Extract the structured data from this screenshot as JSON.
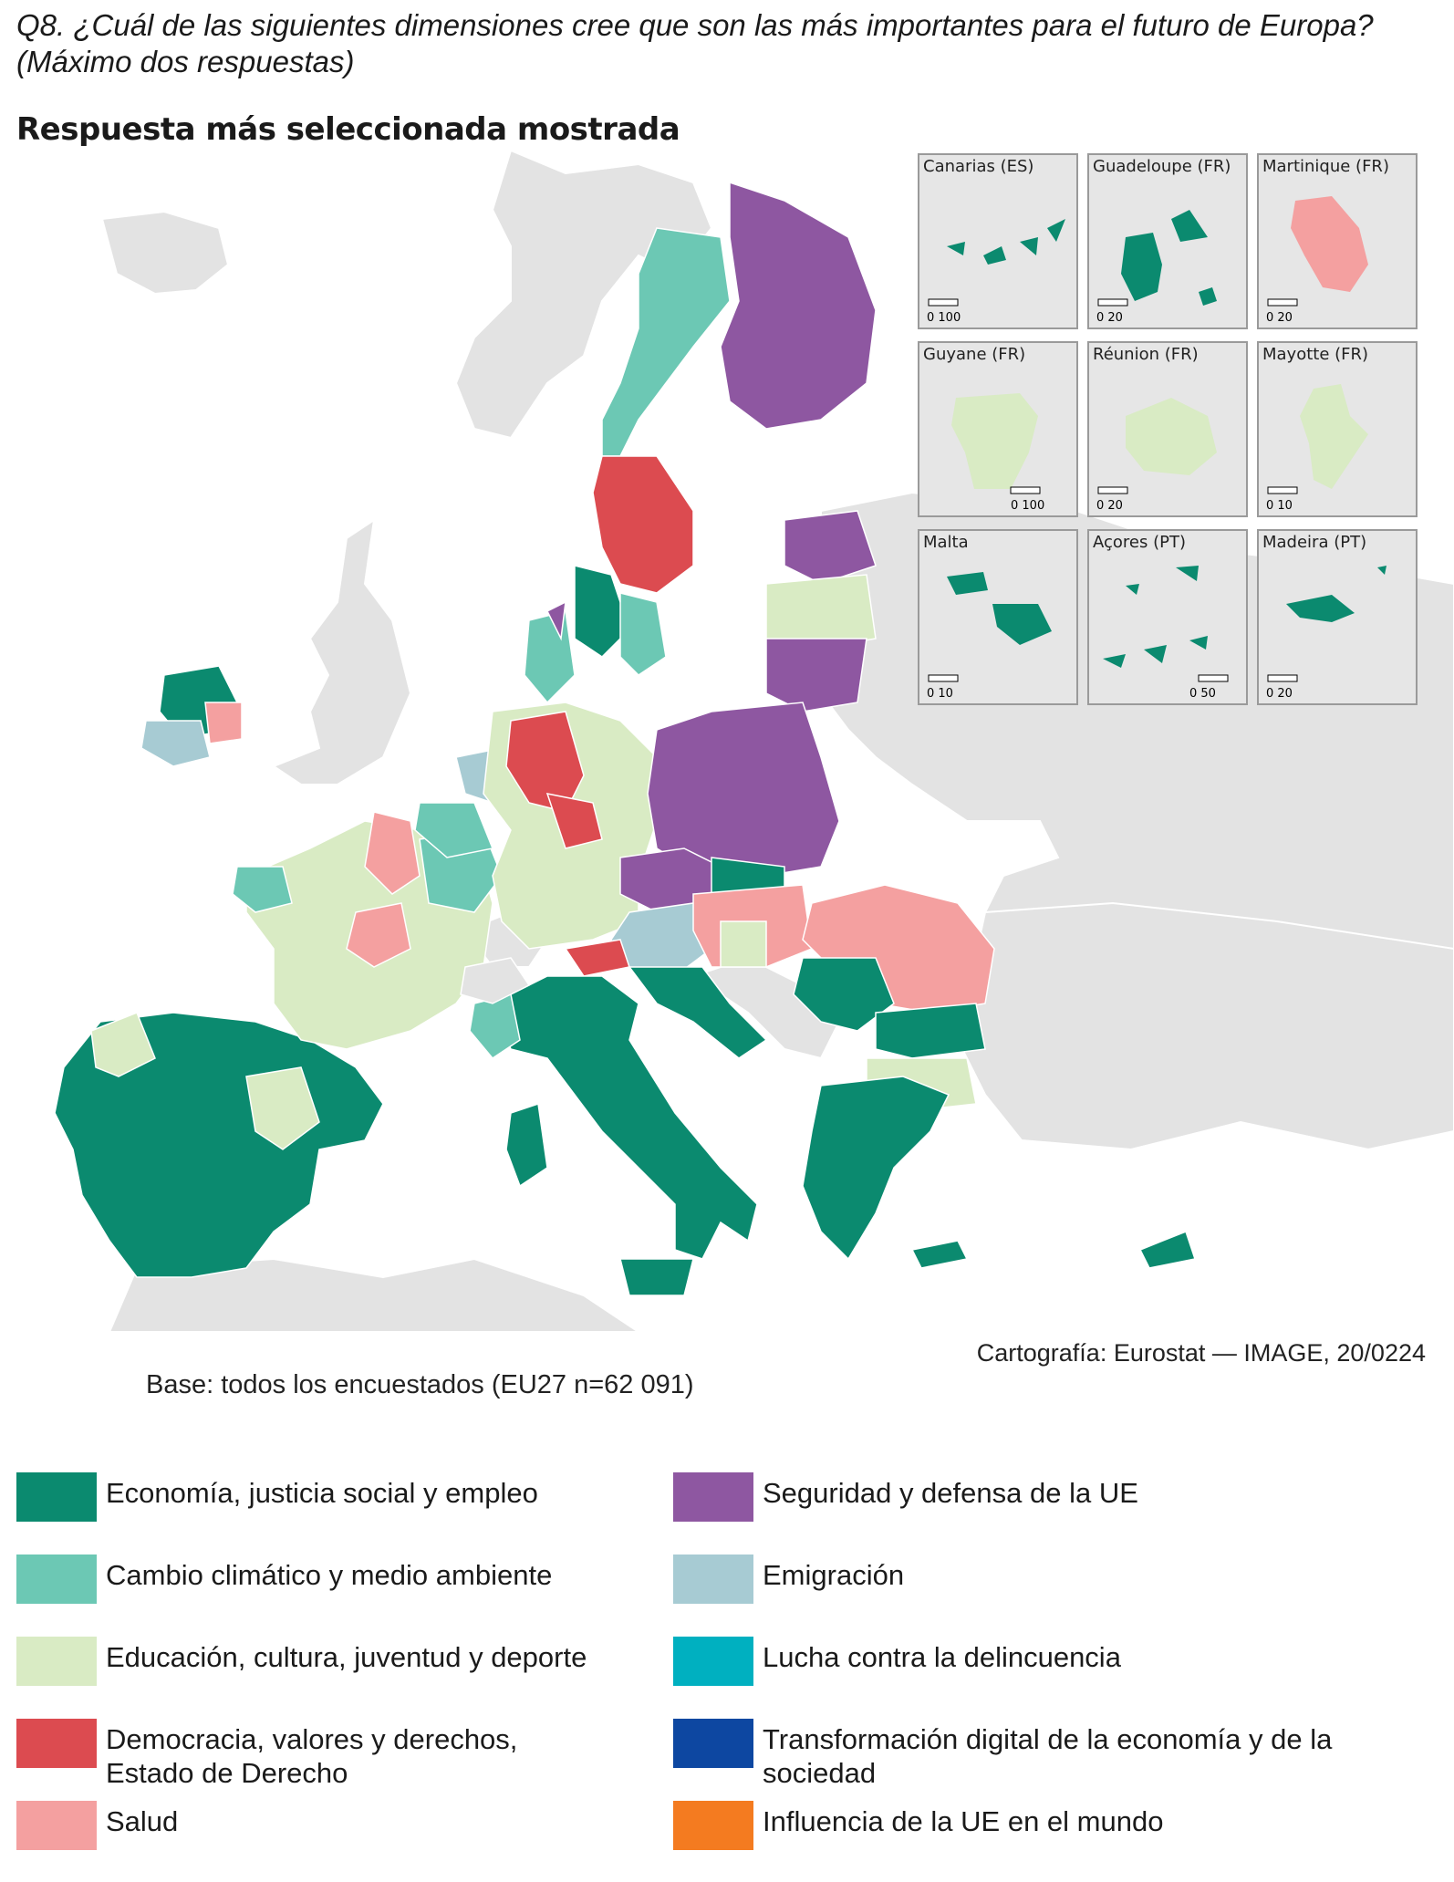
{
  "question": "Q8. ¿Cuál de las siguientes dimensiones cree que son las más importantes para el futuro de Europa? (Máximo dos respuestas)",
  "subtitle": "Respuesta más seleccionada mostrada",
  "credit": "Cartografía: Eurostat — IMAGE, 20/0224",
  "base": "Base: todos los encuestados (EU27 n=62 091)",
  "colors": {
    "economia": "#0b8a6f",
    "clima": "#6cc8b4",
    "educacion": "#d9ebc4",
    "democracia": "#dc4b50",
    "salud": "#f4a0a0",
    "seguridad": "#8e57a1",
    "emigracion": "#a7cbd3",
    "delincuencia": "#00b0c0",
    "digital": "#0d47a1",
    "influencia": "#f47b20",
    "nodata": "#e3e3e3",
    "sea": "#ffffff"
  },
  "legend": [
    {
      "label": "Economía, justicia social y empleo",
      "color_key": "economia"
    },
    {
      "label": "Seguridad y defensa de la UE",
      "color_key": "seguridad"
    },
    {
      "label": "Cambio climático y medio ambiente",
      "color_key": "clima"
    },
    {
      "label": "Emigración",
      "color_key": "emigracion"
    },
    {
      "label": "Educación, cultura, juventud y deporte",
      "color_key": "educacion"
    },
    {
      "label": "Lucha contra la delincuencia",
      "color_key": "delincuencia"
    },
    {
      "label": "Democracia, valores y derechos, Estado de Derecho",
      "color_key": "democracia"
    },
    {
      "label": "Transformación digital de la economía y de la sociedad",
      "color_key": "digital"
    },
    {
      "label": "Salud",
      "color_key": "salud"
    },
    {
      "label": "Influencia de la UE en el mundo",
      "color_key": "influencia"
    }
  ],
  "insets": [
    {
      "label": "Canarias (ES)",
      "scale": "0   100",
      "color_key": "economia"
    },
    {
      "label": "Guadeloupe (FR)",
      "scale": "0   20",
      "color_key": "economia"
    },
    {
      "label": "Martinique (FR)",
      "scale": "0   20",
      "color_key": "salud"
    },
    {
      "label": "Guyane (FR)",
      "scale": "0   100",
      "color_key": "educacion"
    },
    {
      "label": "Réunion (FR)",
      "scale": "0   20",
      "color_key": "educacion"
    },
    {
      "label": "Mayotte (FR)",
      "scale": "0   10",
      "color_key": "educacion"
    },
    {
      "label": "Malta",
      "scale": "0   10",
      "color_key": "economia"
    },
    {
      "label": "Açores (PT)",
      "scale": "0   50",
      "color_key": "economia"
    },
    {
      "label": "Madeira (PT)",
      "scale": "0   20",
      "color_key": "economia"
    }
  ]
}
